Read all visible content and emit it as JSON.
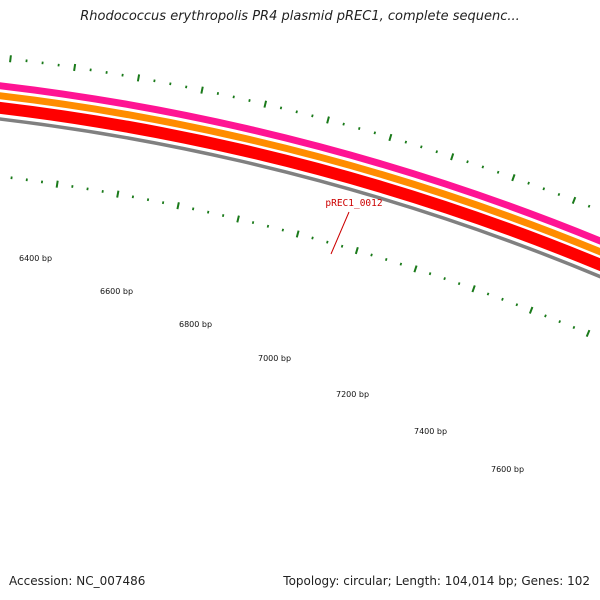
{
  "title": "Rhodococcus erythropolis PR4 plasmid pREC1, complete sequenc...",
  "footer": {
    "accession": "Accession: NC_007486",
    "summary": "Topology: circular; Length: 104,014 bp; Genes: 102"
  },
  "colors": {
    "ticks": "#1a7a1a",
    "gene_label": "#cc0000",
    "backbone": "#808080",
    "gene_band": "#ff0000",
    "cds_band": "#ff8c00",
    "rna_band": "#ff1493"
  },
  "gene_label": {
    "text": "pREC1_0012"
  },
  "bp_labels": [
    "6400 bp",
    "6600 bp",
    "6800 bp",
    "7000 bp",
    "7200 bp",
    "7400 bp",
    "7600 bp"
  ]
}
